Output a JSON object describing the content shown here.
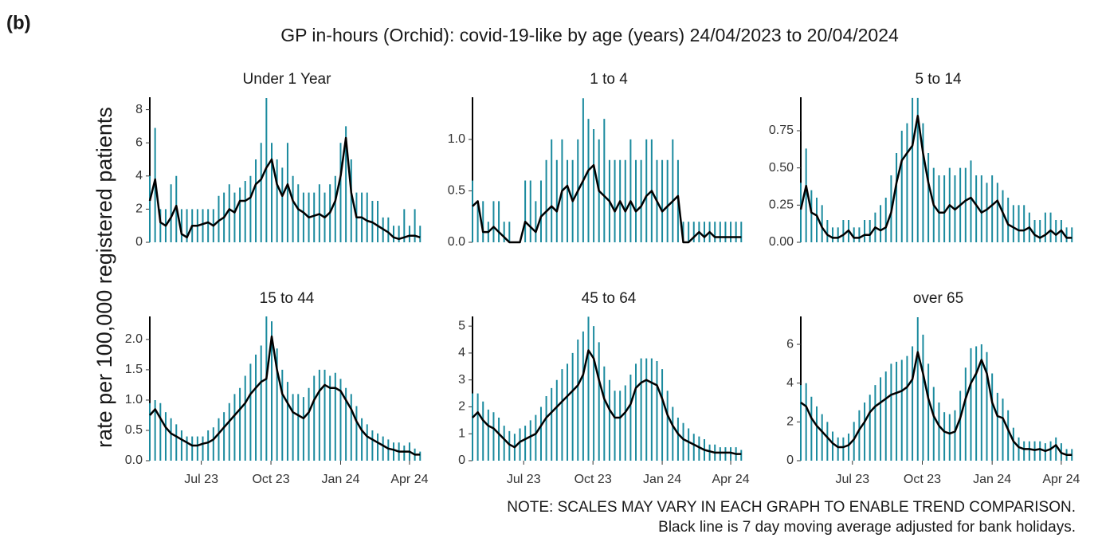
{
  "panel_label": "(b)",
  "chart_data": {
    "type": "line",
    "title": "GP in-hours (Orchid): covid-19-like by age (years) 24/04/2023 to 20/04/2024",
    "y_label": "rate per 100,000 registered patients",
    "notes": [
      "NOTE: SCALES MAY VARY IN EACH GRAPH TO ENABLE TREND COMPARISON.",
      "Black line is 7 day moving average adjusted for bank holidays."
    ],
    "xlim": [
      "2023-04-24",
      "2024-04-20"
    ],
    "xticks": [
      {
        "value": "2023-07-01",
        "label": "Jul 23"
      },
      {
        "value": "2023-10-01",
        "label": "Oct 23"
      },
      {
        "value": "2024-01-01",
        "label": "Jan 24"
      },
      {
        "value": "2024-04-01",
        "label": "Apr 24"
      }
    ],
    "x": [
      "2023-04-24",
      "2023-05-01",
      "2023-05-08",
      "2023-05-15",
      "2023-05-22",
      "2023-05-29",
      "2023-06-05",
      "2023-06-12",
      "2023-06-19",
      "2023-06-26",
      "2023-07-03",
      "2023-07-10",
      "2023-07-17",
      "2023-07-24",
      "2023-07-31",
      "2023-08-07",
      "2023-08-14",
      "2023-08-21",
      "2023-08-28",
      "2023-09-04",
      "2023-09-11",
      "2023-09-18",
      "2023-09-25",
      "2023-10-02",
      "2023-10-09",
      "2023-10-16",
      "2023-10-23",
      "2023-10-30",
      "2023-11-06",
      "2023-11-13",
      "2023-11-20",
      "2023-11-27",
      "2023-12-04",
      "2023-12-11",
      "2023-12-18",
      "2023-12-25",
      "2024-01-01",
      "2024-01-08",
      "2024-01-15",
      "2024-01-22",
      "2024-01-29",
      "2024-02-05",
      "2024-02-12",
      "2024-02-19",
      "2024-02-26",
      "2024-03-04",
      "2024-03-11",
      "2024-03-18",
      "2024-03-25",
      "2024-04-01",
      "2024-04-08",
      "2024-04-15"
    ],
    "panels": [
      {
        "title": "Under 1 Year",
        "ylim": [
          0,
          8.75
        ],
        "yticks": [
          0,
          2,
          4,
          6,
          8
        ],
        "series": [
          {
            "color": "#1a8a9e",
            "values": [
              4,
              6.9,
              2,
              2,
              3.5,
              4,
              2,
              2,
              2,
              2,
              2,
              2,
              2,
              2.8,
              3,
              3.5,
              3,
              3.3,
              3.7,
              4,
              5,
              6,
              8.7,
              6,
              5,
              4.5,
              6,
              4,
              3.5,
              3,
              3,
              3,
              3.5,
              3,
              3.5,
              4,
              6,
              7,
              5,
              3,
              3,
              3,
              2.5,
              2.5,
              1.5,
              1.5,
              1,
              1,
              2,
              1,
              2,
              1
            ]
          },
          {
            "color": "#000000",
            "values": [
              2.5,
              3.8,
              1.2,
              1.0,
              1.5,
              2.2,
              0.5,
              0.3,
              1.0,
              1.0,
              1.1,
              1.2,
              1.0,
              1.3,
              1.5,
              2.0,
              1.8,
              2.5,
              2.5,
              2.7,
              3.5,
              3.8,
              4.5,
              5.0,
              3.5,
              2.8,
              3.5,
              2.5,
              2.0,
              1.8,
              1.5,
              1.6,
              1.7,
              1.5,
              1.8,
              2.5,
              4.0,
              6.3,
              3.0,
              1.5,
              1.5,
              1.3,
              1.2,
              1.0,
              0.8,
              0.6,
              0.3,
              0.2,
              0.3,
              0.4,
              0.4,
              0.3
            ]
          }
        ]
      },
      {
        "title": "1 to 4",
        "ylim": [
          0,
          1.41
        ],
        "yticks": [
          {
            "value": 0,
            "label": "0.0"
          },
          0.5,
          {
            "value": 1,
            "label": "1.0"
          }
        ],
        "series": [
          {
            "color": "#1a8a9e",
            "values": [
              0.6,
              0.4,
              0.4,
              0.2,
              0.4,
              0.4,
              0.2,
              0.2,
              0,
              0,
              0.6,
              0.6,
              0.4,
              0.6,
              0.8,
              1.0,
              0.8,
              1.0,
              0.8,
              0.8,
              1.0,
              1.4,
              1.2,
              1.1,
              1.0,
              1.2,
              0.8,
              0.8,
              0.8,
              0.8,
              1.0,
              0.8,
              0.8,
              1.0,
              1.0,
              0.8,
              0.8,
              0.8,
              1.0,
              0.8,
              0.2,
              0.2,
              0.2,
              0.2,
              0.2,
              0.2,
              0.2,
              0.2,
              0.2,
              0.2,
              0.2,
              0.2
            ]
          },
          {
            "color": "#000000",
            "values": [
              0.35,
              0.4,
              0.1,
              0.1,
              0.15,
              0.1,
              0.05,
              0,
              0,
              0,
              0.2,
              0.15,
              0.1,
              0.25,
              0.3,
              0.35,
              0.3,
              0.5,
              0.55,
              0.4,
              0.5,
              0.6,
              0.7,
              0.75,
              0.5,
              0.45,
              0.4,
              0.3,
              0.4,
              0.3,
              0.4,
              0.3,
              0.35,
              0.45,
              0.5,
              0.4,
              0.3,
              0.35,
              0.4,
              0.45,
              0,
              0,
              0.05,
              0.1,
              0.05,
              0.1,
              0.05,
              0.05,
              0.05,
              0.05,
              0.05,
              0.05
            ]
          }
        ]
      },
      {
        "title": "5 to 14",
        "ylim": [
          0,
          0.975
        ],
        "yticks": [
          {
            "value": 0,
            "label": "0.00"
          },
          0.25,
          {
            "value": 0.5,
            "label": "0.50"
          },
          0.75
        ],
        "series": [
          {
            "color": "#1a8a9e",
            "values": [
              0.4,
              0.63,
              0.35,
              0.3,
              0.25,
              0.15,
              0.1,
              0.1,
              0.15,
              0.15,
              0.1,
              0.1,
              0.15,
              0.15,
              0.2,
              0.25,
              0.3,
              0.45,
              0.6,
              0.75,
              0.8,
              0.97,
              0.97,
              0.8,
              0.6,
              0.5,
              0.45,
              0.45,
              0.5,
              0.45,
              0.5,
              0.5,
              0.55,
              0.45,
              0.45,
              0.4,
              0.45,
              0.4,
              0.35,
              0.3,
              0.25,
              0.25,
              0.25,
              0.2,
              0.15,
              0.15,
              0.2,
              0.2,
              0.15,
              0.15,
              0.1,
              0.1
            ]
          },
          {
            "color": "#000000",
            "values": [
              0.22,
              0.38,
              0.2,
              0.18,
              0.1,
              0.05,
              0.03,
              0.03,
              0.05,
              0.08,
              0.03,
              0.03,
              0.05,
              0.05,
              0.1,
              0.08,
              0.1,
              0.2,
              0.4,
              0.55,
              0.6,
              0.65,
              0.85,
              0.6,
              0.4,
              0.25,
              0.2,
              0.2,
              0.25,
              0.22,
              0.25,
              0.28,
              0.3,
              0.25,
              0.2,
              0.22,
              0.25,
              0.28,
              0.2,
              0.12,
              0.1,
              0.08,
              0.08,
              0.1,
              0.05,
              0.03,
              0.05,
              0.08,
              0.05,
              0.08,
              0.03,
              0.03
            ]
          }
        ]
      },
      {
        "title": "15 to 44",
        "ylim": [
          0,
          2.38
        ],
        "yticks": [
          {
            "value": 0,
            "label": "0.0"
          },
          0.5,
          {
            "value": 1,
            "label": "1.0"
          },
          1.5,
          {
            "value": 2,
            "label": "2.0"
          }
        ],
        "series": [
          {
            "color": "#1a8a9e",
            "values": [
              0.95,
              1.0,
              0.95,
              0.8,
              0.7,
              0.6,
              0.5,
              0.4,
              0.4,
              0.4,
              0.4,
              0.5,
              0.55,
              0.7,
              0.8,
              0.95,
              1.1,
              1.2,
              1.4,
              1.6,
              1.75,
              1.9,
              2.38,
              2.3,
              1.85,
              1.5,
              1.3,
              1.1,
              1.1,
              1.05,
              1.2,
              1.4,
              1.5,
              1.5,
              1.4,
              1.45,
              1.35,
              1.2,
              1.1,
              0.9,
              0.7,
              0.6,
              0.5,
              0.45,
              0.4,
              0.35,
              0.3,
              0.3,
              0.25,
              0.3,
              0.2,
              0.15
            ]
          },
          {
            "color": "#000000",
            "values": [
              0.75,
              0.85,
              0.7,
              0.55,
              0.45,
              0.4,
              0.35,
              0.3,
              0.25,
              0.25,
              0.28,
              0.3,
              0.35,
              0.45,
              0.55,
              0.65,
              0.75,
              0.85,
              0.95,
              1.1,
              1.2,
              1.3,
              1.35,
              2.05,
              1.5,
              1.1,
              0.95,
              0.8,
              0.75,
              0.7,
              0.8,
              1.0,
              1.15,
              1.25,
              1.2,
              1.2,
              1.15,
              1.0,
              0.85,
              0.65,
              0.5,
              0.4,
              0.35,
              0.3,
              0.25,
              0.2,
              0.18,
              0.15,
              0.15,
              0.15,
              0.1,
              0.1
            ]
          }
        ]
      },
      {
        "title": "45 to 64",
        "ylim": [
          0,
          5.36
        ],
        "yticks": [
          0,
          1,
          2,
          3,
          4,
          5
        ],
        "series": [
          {
            "color": "#1a8a9e",
            "values": [
              2.5,
              2.5,
              2.2,
              1.9,
              1.8,
              1.6,
              1.3,
              1.1,
              1.0,
              1.2,
              1.3,
              1.5,
              1.7,
              2.0,
              2.4,
              2.7,
              3.0,
              3.4,
              3.6,
              4.0,
              4.5,
              4.8,
              5.35,
              5.0,
              4.4,
              3.5,
              3.0,
              2.6,
              2.6,
              2.8,
              3.2,
              3.6,
              3.8,
              3.8,
              3.8,
              3.7,
              3.4,
              2.6,
              2.0,
              1.6,
              1.4,
              1.2,
              1.0,
              0.9,
              0.8,
              0.6,
              0.6,
              0.5,
              0.5,
              0.5,
              0.5,
              0.4
            ]
          },
          {
            "color": "#000000",
            "values": [
              1.6,
              1.8,
              1.5,
              1.3,
              1.2,
              1.0,
              0.8,
              0.6,
              0.5,
              0.7,
              0.8,
              0.9,
              1.0,
              1.3,
              1.6,
              1.8,
              2.0,
              2.2,
              2.4,
              2.6,
              2.8,
              3.2,
              4.1,
              3.8,
              3.0,
              2.3,
              1.9,
              1.6,
              1.6,
              1.8,
              2.1,
              2.7,
              2.9,
              3.0,
              2.9,
              2.8,
              2.3,
              1.7,
              1.3,
              1.0,
              0.8,
              0.7,
              0.6,
              0.5,
              0.4,
              0.35,
              0.3,
              0.3,
              0.3,
              0.3,
              0.25,
              0.25
            ]
          }
        ]
      },
      {
        "title": "over 65",
        "ylim": [
          0,
          7.44
        ],
        "yticks": [
          0,
          2,
          4,
          6
        ],
        "series": [
          {
            "color": "#1a8a9e",
            "values": [
              3.9,
              4.0,
              3.3,
              2.8,
              2.4,
              2.0,
              1.5,
              1.2,
              1.2,
              1.4,
              2.0,
              2.6,
              3.0,
              3.4,
              3.9,
              4.3,
              4.6,
              5.0,
              5.1,
              5.2,
              5.4,
              5.9,
              7.4,
              6.5,
              5.0,
              3.8,
              3.0,
              2.5,
              2.4,
              2.6,
              3.6,
              4.8,
              5.8,
              5.9,
              6.0,
              5.6,
              4.5,
              3.5,
              3.2,
              2.6,
              1.7,
              1.2,
              1.0,
              1.0,
              1.0,
              1.0,
              0.9,
              1.0,
              1.2,
              0.9,
              0.6,
              0.6
            ]
          },
          {
            "color": "#000000",
            "values": [
              3.0,
              2.8,
              2.2,
              1.8,
              1.5,
              1.2,
              0.9,
              0.7,
              0.7,
              0.8,
              1.1,
              1.6,
              2.0,
              2.5,
              2.8,
              3.0,
              3.2,
              3.4,
              3.5,
              3.6,
              3.8,
              4.2,
              5.6,
              4.5,
              3.2,
              2.3,
              1.8,
              1.5,
              1.4,
              1.5,
              2.2,
              3.2,
              4.0,
              4.5,
              5.2,
              4.5,
              3.0,
              2.3,
              2.2,
              1.6,
              1.0,
              0.7,
              0.6,
              0.6,
              0.55,
              0.6,
              0.5,
              0.6,
              0.8,
              0.4,
              0.3,
              0.3
            ]
          }
        ]
      }
    ]
  }
}
